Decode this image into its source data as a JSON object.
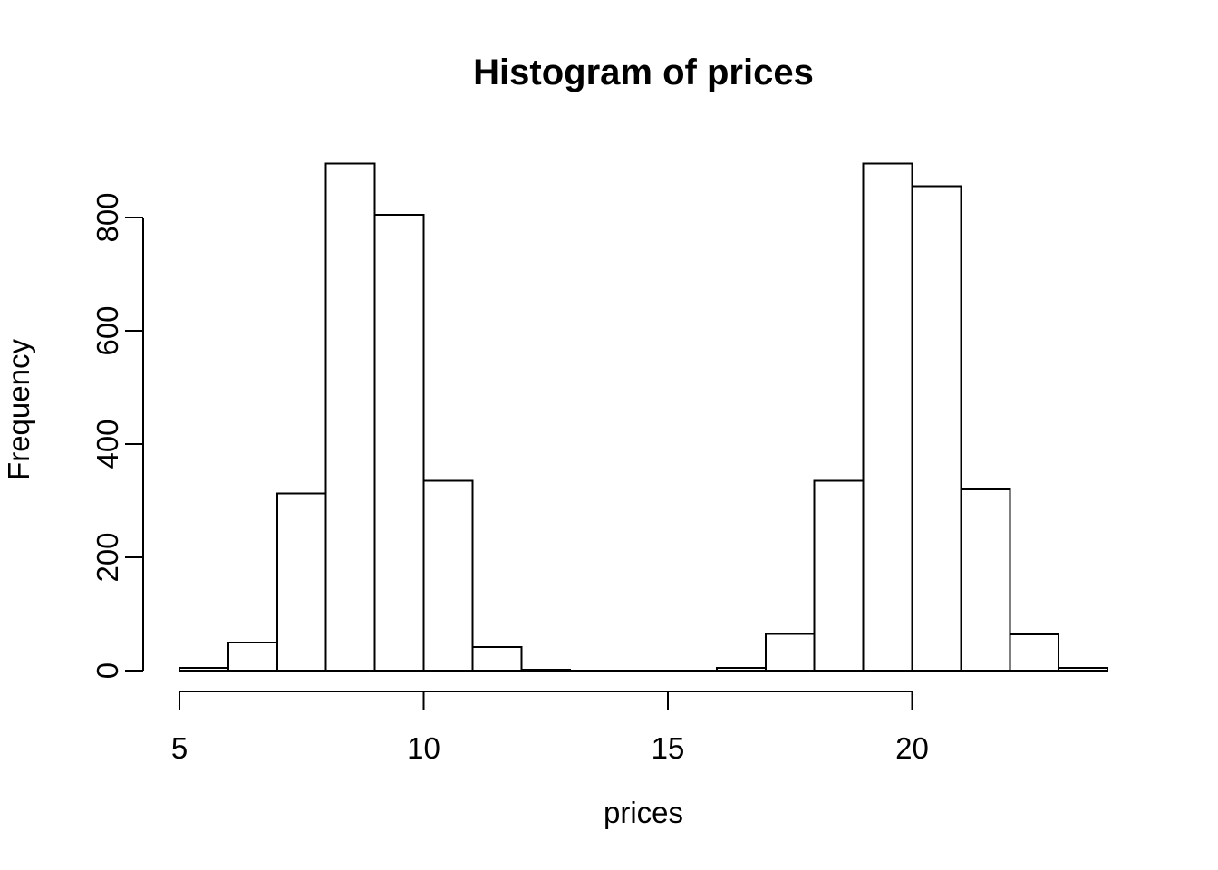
{
  "chart_data": {
    "type": "histogram",
    "title": "Histogram of prices",
    "xlabel": "prices",
    "ylabel": "Frequency",
    "bin_edges": [
      5,
      6,
      7,
      8,
      9,
      10,
      11,
      12,
      13,
      14,
      15,
      16,
      17,
      18,
      19,
      20,
      21,
      22,
      23,
      24
    ],
    "counts": [
      5,
      50,
      313,
      895,
      805,
      335,
      42,
      2,
      0,
      0,
      0,
      5,
      65,
      335,
      895,
      855,
      320,
      64,
      5
    ],
    "x_ticks": [
      5,
      10,
      15,
      20
    ],
    "y_ticks": [
      0,
      200,
      400,
      600,
      800
    ],
    "xlim": [
      5,
      24
    ],
    "ylim": [
      0,
      900
    ],
    "legend": "none",
    "grid": false,
    "bar_fill": "#ffffff",
    "bar_stroke": "#000000",
    "axis_color": "#000000",
    "text_color": "#000000",
    "background": "#ffffff"
  }
}
